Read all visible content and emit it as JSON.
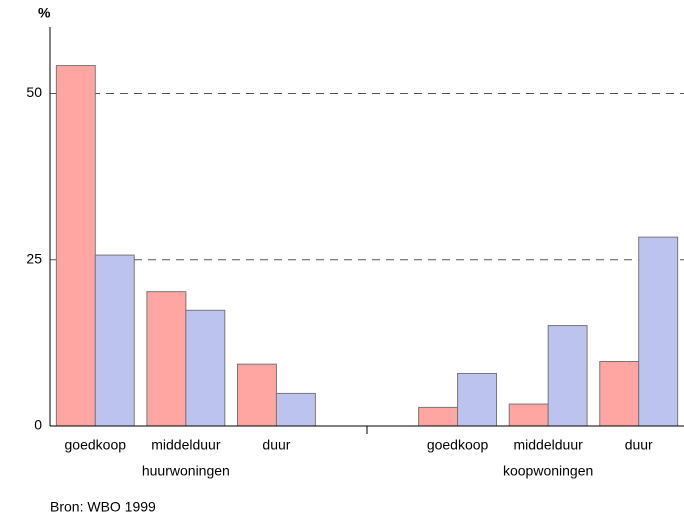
{
  "chart_data": {
    "type": "bar",
    "y_label": "%",
    "source": "Bron: WBO 1999",
    "categories": [
      "goedkoop",
      "middelduur",
      "duur",
      null,
      "goedkoop",
      "middelduur",
      "duur"
    ],
    "groups": [
      "huurwoningen",
      "koopwoningen"
    ],
    "series": [
      {
        "color": "#ffa6a2",
        "values": [
          54.2,
          20.2,
          9.3,
          null,
          2.8,
          3.3,
          9.7
        ]
      },
      {
        "color": "#bcc3ef",
        "values": [
          25.7,
          17.4,
          4.9,
          null,
          7.9,
          15.1,
          28.4
        ]
      }
    ],
    "ylim": [
      0,
      60
    ],
    "yticks": [
      0,
      25,
      50
    ],
    "grid": true
  }
}
